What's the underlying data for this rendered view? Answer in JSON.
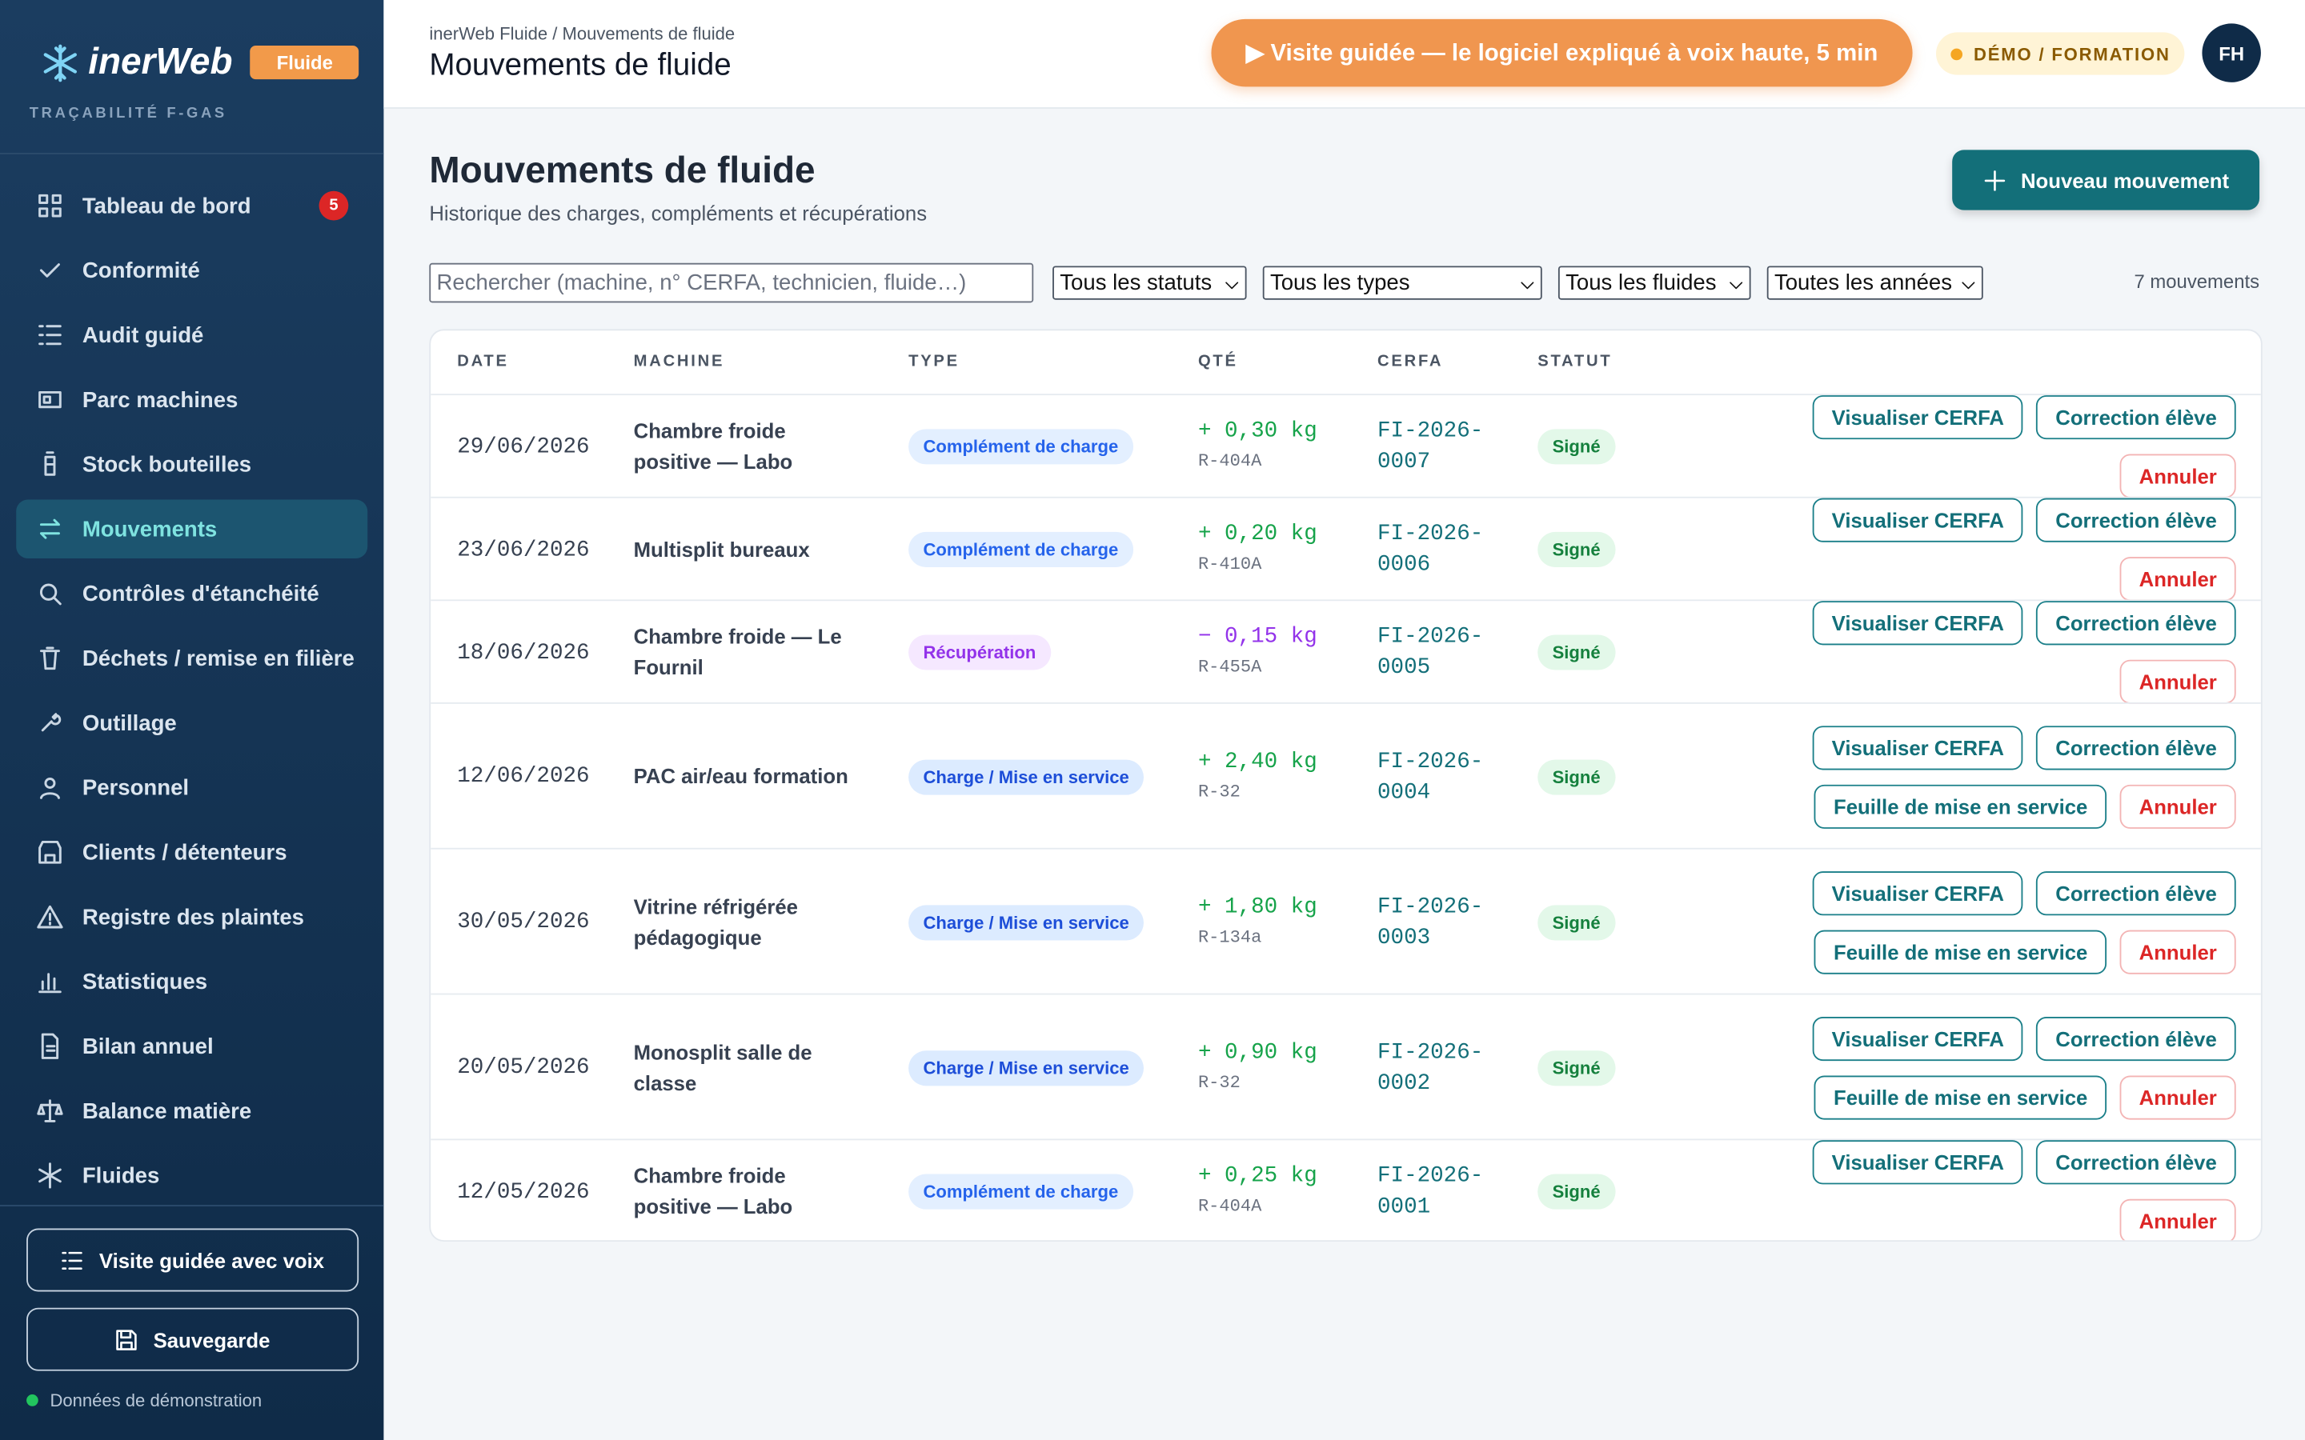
{
  "sidebar": {
    "brand": "inerWeb",
    "badge": "Fluide",
    "tagline": "TRAÇABILITÉ F-GAS",
    "nav": [
      {
        "label": "Tableau de bord",
        "count": 5
      },
      {
        "label": "Conformité"
      },
      {
        "label": "Audit guidé"
      },
      {
        "label": "Parc machines"
      },
      {
        "label": "Stock bouteilles"
      },
      {
        "label": "Mouvements"
      },
      {
        "label": "Contrôles d'étanchéité"
      },
      {
        "label": "Déchets / remise en filière"
      },
      {
        "label": "Outillage"
      },
      {
        "label": "Personnel"
      },
      {
        "label": "Clients / détenteurs"
      },
      {
        "label": "Registre des plaintes"
      },
      {
        "label": "Statistiques"
      },
      {
        "label": "Bilan annuel"
      },
      {
        "label": "Balance matière"
      },
      {
        "label": "Fluides"
      }
    ],
    "buttons": [
      "Visite guidée avec voix",
      "Sauvegarde"
    ],
    "footer": "Données de démonstration"
  },
  "header": {
    "breadcrumb": "inerWeb Fluide / Mouvements de fluide",
    "title": "Mouvements de fluide",
    "tour": "▶ Visite guidée — le logiciel expliqué à voix haute, 5 min",
    "mode": "DÉMO / FORMATION",
    "avatar": "FH"
  },
  "page": {
    "title": "Mouvements de fluide",
    "subtitle": "Historique des charges, compléments et récupérations",
    "new_button": "Nouveau mouvement",
    "search_placeholder": "Rechercher (machine, n° CERFA, technicien, fluide…)",
    "filters": [
      "Tous les statuts",
      "Tous les types",
      "Tous les fluides",
      "Toutes les années"
    ],
    "count": "7 mouvements"
  },
  "table": {
    "columns": [
      "DATE",
      "MACHINE",
      "TYPE",
      "QTÉ",
      "CERFA",
      "STATUT"
    ],
    "rows": [
      {
        "date": "29/06/2026",
        "machine": "Chambre froide positive — Labo",
        "type": "Complément de charge",
        "type_color": "#2563eb",
        "type_bg": "#e3efff",
        "qty": "+ 0,30 kg",
        "qty_color": "#16a34a",
        "fluid": "R-404A",
        "cerfa": "FI-2026-0007",
        "status": "Signé",
        "actions": [
          "Visualiser CERFA",
          "Correction élève",
          "Annuler"
        ]
      },
      {
        "date": "23/06/2026",
        "machine": "Multisplit bureaux",
        "type": "Complément de charge",
        "type_color": "#2563eb",
        "type_bg": "#e3efff",
        "qty": "+ 0,20 kg",
        "qty_color": "#16a34a",
        "fluid": "R-410A",
        "cerfa": "FI-2026-0006",
        "status": "Signé",
        "actions": [
          "Visualiser CERFA",
          "Correction élève",
          "Annuler"
        ]
      },
      {
        "date": "18/06/2026",
        "machine": "Chambre froide — Le Fournil",
        "type": "Récupération",
        "type_color": "#9333ea",
        "type_bg": "#f5e8ff",
        "qty": "− 0,15 kg",
        "qty_color": "#9333ea",
        "fluid": "R-455A",
        "cerfa": "FI-2026-0005",
        "status": "Signé",
        "actions": [
          "Visualiser CERFA",
          "Correction élève",
          "Annuler"
        ]
      },
      {
        "date": "12/06/2026",
        "machine": "PAC air/eau formation",
        "type": "Charge / Mise en service",
        "type_color": "#1d4ed8",
        "type_bg": "#dcebff",
        "qty": "+ 2,40 kg",
        "qty_color": "#16a34a",
        "fluid": "R-32",
        "cerfa": "FI-2026-0004",
        "status": "Signé",
        "actions": [
          "Visualiser CERFA",
          "Correction élève",
          "Feuille de mise en service",
          "Annuler"
        ]
      },
      {
        "date": "30/05/2026",
        "machine": "Vitrine réfrigérée pédagogique",
        "type": "Charge / Mise en service",
        "type_color": "#1d4ed8",
        "type_bg": "#dcebff",
        "qty": "+ 1,80 kg",
        "qty_color": "#16a34a",
        "fluid": "R-134a",
        "cerfa": "FI-2026-0003",
        "status": "Signé",
        "actions": [
          "Visualiser CERFA",
          "Correction élève",
          "Feuille de mise en service",
          "Annuler"
        ]
      },
      {
        "date": "20/05/2026",
        "machine": "Monosplit salle de classe",
        "type": "Charge / Mise en service",
        "type_color": "#1d4ed8",
        "type_bg": "#dcebff",
        "qty": "+ 0,90 kg",
        "qty_color": "#16a34a",
        "fluid": "R-32",
        "cerfa": "FI-2026-0002",
        "status": "Signé",
        "actions": [
          "Visualiser CERFA",
          "Correction élève",
          "Feuille de mise en service",
          "Annuler"
        ]
      },
      {
        "date": "12/05/2026",
        "machine": "Chambre froide positive — Labo",
        "type": "Complément de charge",
        "type_color": "#2563eb",
        "type_bg": "#e3efff",
        "qty": "+ 0,25 kg",
        "qty_color": "#16a34a",
        "fluid": "R-404A",
        "cerfa": "FI-2026-0001",
        "status": "Signé",
        "actions": [
          "Visualiser CERFA",
          "Correction élève",
          "Annuler"
        ]
      }
    ]
  }
}
